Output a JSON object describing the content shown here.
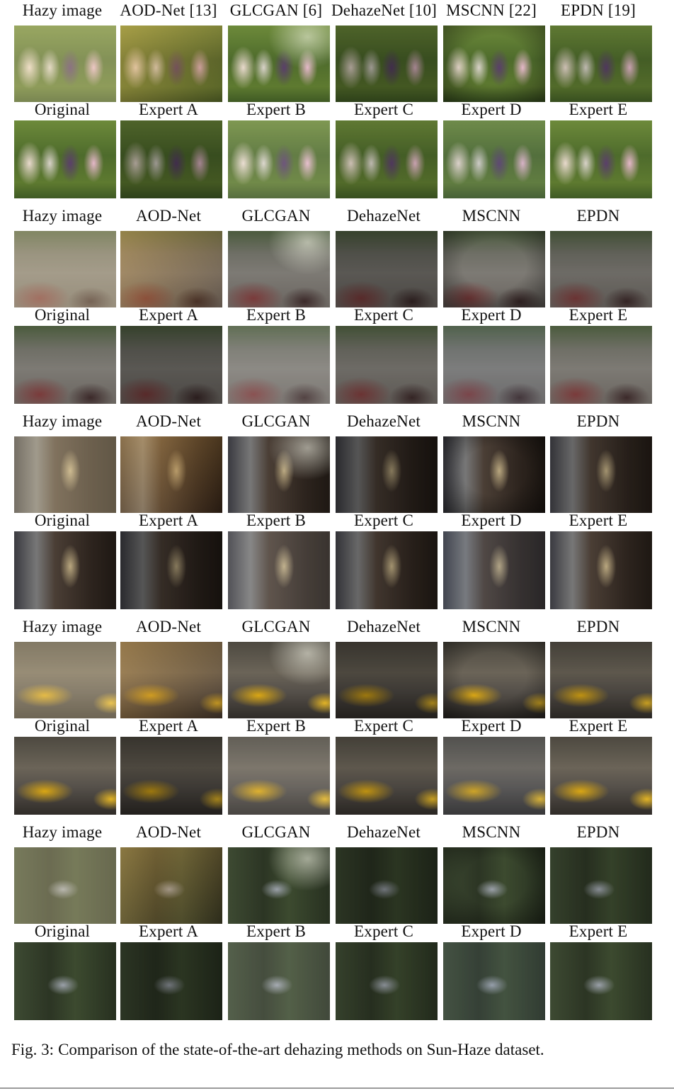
{
  "figure": {
    "groups": [
      {
        "scene": "s-girls",
        "row1_labels": [
          "Hazy image",
          "AOD-Net [13]",
          "GLCGAN [6]",
          "DehazeNet [10]",
          "MSCNN [22]",
          "EPDN [19]"
        ],
        "row2_labels": [
          "Original",
          "Expert A",
          "Expert B",
          "Expert C",
          "Expert D",
          "Expert E"
        ]
      },
      {
        "scene": "s-street",
        "row1_labels": [
          "Hazy image",
          "AOD-Net",
          "GLCGAN",
          "DehazeNet",
          "MSCNN",
          "EPDN"
        ],
        "row2_labels": [
          "Original",
          "Expert A",
          "Expert B",
          "Expert C",
          "Expert D",
          "Expert E"
        ]
      },
      {
        "scene": "s-trophy",
        "row1_labels": [
          "Hazy image",
          "AOD-Net",
          "GLCGAN",
          "DehazeNet",
          "MSCNN",
          "EPDN"
        ],
        "row2_labels": [
          "Original",
          "Expert A",
          "Expert B",
          "Expert C",
          "Expert D",
          "Expert E"
        ]
      },
      {
        "scene": "s-taxi",
        "row1_labels": [
          "Hazy image",
          "AOD-Net",
          "GLCGAN",
          "DehazeNet",
          "MSCNN",
          "EPDN"
        ],
        "row2_labels": [
          "Original",
          "Expert A",
          "Expert B",
          "Expert C",
          "Expert D",
          "Expert E"
        ]
      },
      {
        "scene": "s-house",
        "row1_labels": [
          "Hazy image",
          "AOD-Net",
          "GLCGAN",
          "DehazeNet",
          "MSCNN",
          "EPDN"
        ],
        "row2_labels": [
          "Original",
          "Expert A",
          "Expert B",
          "Expert C",
          "Expert D",
          "Expert E"
        ]
      }
    ]
  },
  "caption": {
    "label": "Fig. 3:",
    "text": "Comparison of the state-of-the-art dehazing methods on Sun-Haze dataset."
  }
}
